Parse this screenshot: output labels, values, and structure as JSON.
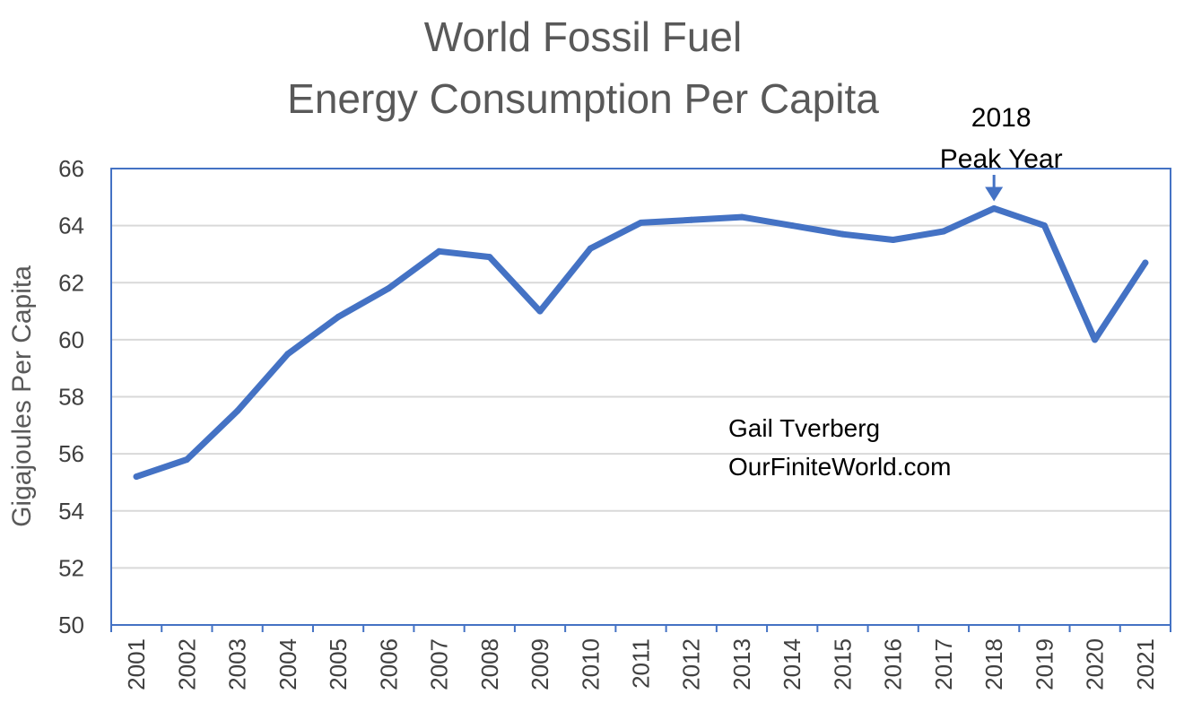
{
  "colors": {
    "series": "#4472C4",
    "axis": "#4472C4",
    "grid": "#D9D9D9"
  },
  "chart_data": {
    "type": "line",
    "title_lines": [
      "World Fossil Fuel",
      "Energy Consumption Per Capita"
    ],
    "xlabel": "",
    "ylabel": "Gigajoules Per Capita",
    "ylim": [
      50,
      66
    ],
    "yticks": [
      "50",
      "52",
      "54",
      "56",
      "58",
      "60",
      "62",
      "64",
      "66"
    ],
    "grid": true,
    "legend": "none",
    "categories": [
      "2001",
      "2002",
      "2003",
      "2004",
      "2005",
      "2006",
      "2007",
      "2008",
      "2009",
      "2010",
      "2011",
      "2012",
      "2013",
      "2014",
      "2015",
      "2016",
      "2017",
      "2018",
      "2019",
      "2020",
      "2021"
    ],
    "series": [
      {
        "values": [
          55.2,
          55.8,
          57.5,
          59.5,
          60.8,
          61.8,
          63.1,
          62.9,
          61.0,
          63.2,
          64.1,
          64.2,
          64.3,
          64.0,
          63.7,
          63.5,
          63.8,
          64.6,
          64.0,
          60.0,
          62.7
        ]
      }
    ],
    "annotations": [
      {
        "category": "2018",
        "lines": [
          "2018",
          "Peak Year"
        ]
      }
    ],
    "credit_lines": [
      "Gail Tverberg",
      "OurFiniteWorld.com"
    ]
  }
}
